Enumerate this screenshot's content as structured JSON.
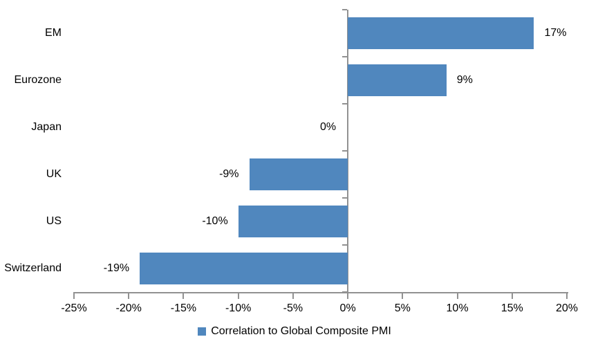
{
  "chart_data": {
    "type": "bar",
    "orientation": "horizontal",
    "title": "",
    "xlabel": "",
    "ylabel": "",
    "categories": [
      "EM",
      "Eurozone",
      "Japan",
      "UK",
      "US",
      "Switzerland"
    ],
    "values": [
      17,
      9,
      0,
      -9,
      -10,
      -19
    ],
    "value_labels": [
      "17%",
      "9%",
      "0%",
      "-9%",
      "-10%",
      "-19%"
    ],
    "xlim": [
      -25,
      20
    ],
    "x_ticks": [
      -25,
      -20,
      -15,
      -10,
      -5,
      0,
      5,
      10,
      15,
      20
    ],
    "x_tick_labels": [
      "-25%",
      "-20%",
      "-15%",
      "-10%",
      "-5%",
      "0%",
      "5%",
      "10%",
      "15%",
      "20%"
    ],
    "grid": false,
    "legend_position": "bottom",
    "legend": [
      "Correlation to Global Composite PMI"
    ],
    "bar_color": "#5087BE",
    "axis_color": "#919191",
    "text_color": "#000000"
  }
}
